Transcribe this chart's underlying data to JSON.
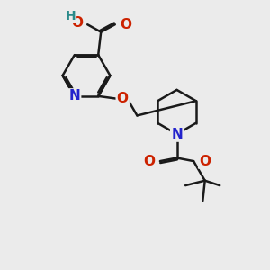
{
  "bg_color": "#ebebeb",
  "bond_color": "#1a1a1a",
  "bond_width": 1.8,
  "atom_colors": {
    "C": "#1a1a1a",
    "H": "#2a8a8a",
    "O": "#cc2200",
    "N": "#2222cc"
  },
  "font_size": 10,
  "fig_size": [
    3.0,
    3.0
  ],
  "dpi": 100,
  "xlim": [
    0,
    10
  ],
  "ylim": [
    0,
    10
  ]
}
